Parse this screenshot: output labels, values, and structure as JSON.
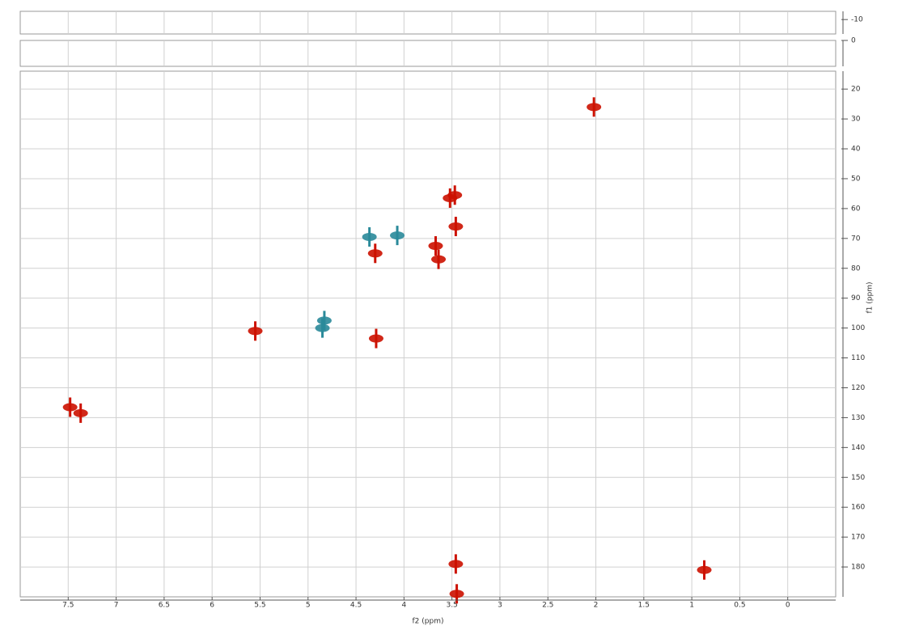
{
  "chart_data": [
    {
      "type": "scatter",
      "ylim": [
        -14,
        -3
      ],
      "yticks": [
        -10
      ]
    },
    {
      "type": "scatter",
      "ylim": [
        0,
        9
      ],
      "yticks": [
        0
      ]
    },
    {
      "type": "scatter",
      "xlabel": "f2 (ppm)",
      "ylabel": "f1 (ppm)",
      "xlim": [
        8.0,
        -0.5
      ],
      "xticks": [
        7.5,
        7.0,
        6.5,
        6.0,
        5.5,
        5.0,
        4.5,
        4.0,
        3.5,
        3.0,
        2.5,
        2.0,
        1.5,
        1.0,
        0.5,
        0.0
      ],
      "ylim": [
        14,
        190
      ],
      "yticks": [
        20,
        30,
        40,
        50,
        60,
        70,
        80,
        90,
        100,
        110,
        120,
        130,
        140,
        150,
        160,
        170,
        180
      ],
      "grid": true,
      "series": [
        {
          "color": "#cc1100",
          "x": [
            7.48,
            7.37,
            5.55,
            4.3,
            4.29,
            3.67,
            3.64,
            3.52,
            3.46,
            3.47,
            3.46,
            3.45,
            2.02,
            0.87
          ],
          "values": [
            126.5,
            128.5,
            101,
            75,
            103.5,
            72.5,
            77,
            56.5,
            66,
            55.5,
            179,
            189,
            26,
            181
          ]
        },
        {
          "color": "#2a8a9a",
          "x": [
            4.83,
            4.36,
            4.07,
            4.85
          ],
          "values": [
            97.5,
            69.5,
            69,
            100
          ]
        }
      ]
    }
  ]
}
